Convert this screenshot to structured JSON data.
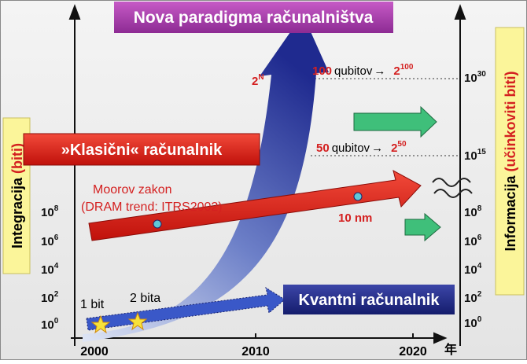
{
  "title": "Nova paradigma računalništva",
  "left_axis": {
    "label": "Integracija",
    "unit": "(biti)",
    "ticks": [
      {
        "base": "10",
        "exp": "8"
      },
      {
        "base": "10",
        "exp": "6"
      },
      {
        "base": "10",
        "exp": "4"
      },
      {
        "base": "10",
        "exp": "2"
      },
      {
        "base": "10",
        "exp": "0"
      }
    ]
  },
  "right_axis": {
    "label": "Informacija",
    "unit": "(učinkoviti biti)",
    "ticks": [
      {
        "base": "10",
        "exp": "30"
      },
      {
        "base": "10",
        "exp": "15"
      },
      {
        "base": "10",
        "exp": "8"
      },
      {
        "base": "10",
        "exp": "6"
      },
      {
        "base": "10",
        "exp": "4"
      },
      {
        "base": "10",
        "exp": "2"
      },
      {
        "base": "10",
        "exp": "0"
      }
    ]
  },
  "x_axis": {
    "ticks": [
      "2000",
      "2010",
      "2020"
    ],
    "unit": "年"
  },
  "classical": {
    "label": "»Klasični« računalnik",
    "law": "Moorov zakon",
    "trend": "(DRAM trend: ITRS2002)",
    "node": "10 nm"
  },
  "quantum": {
    "label": "Kvantni računalnik",
    "growth": {
      "base": "2",
      "exp": "N"
    },
    "points": [
      "1 bit",
      "2 bita"
    ],
    "qubits": [
      {
        "count": "100",
        "text": "qubitov",
        "arrow": "→",
        "result": {
          "base": "2",
          "exp": "100"
        }
      },
      {
        "count": "50",
        "text": "qubitov",
        "arrow": "→",
        "result": {
          "base": "2",
          "exp": "50"
        }
      }
    ]
  }
}
